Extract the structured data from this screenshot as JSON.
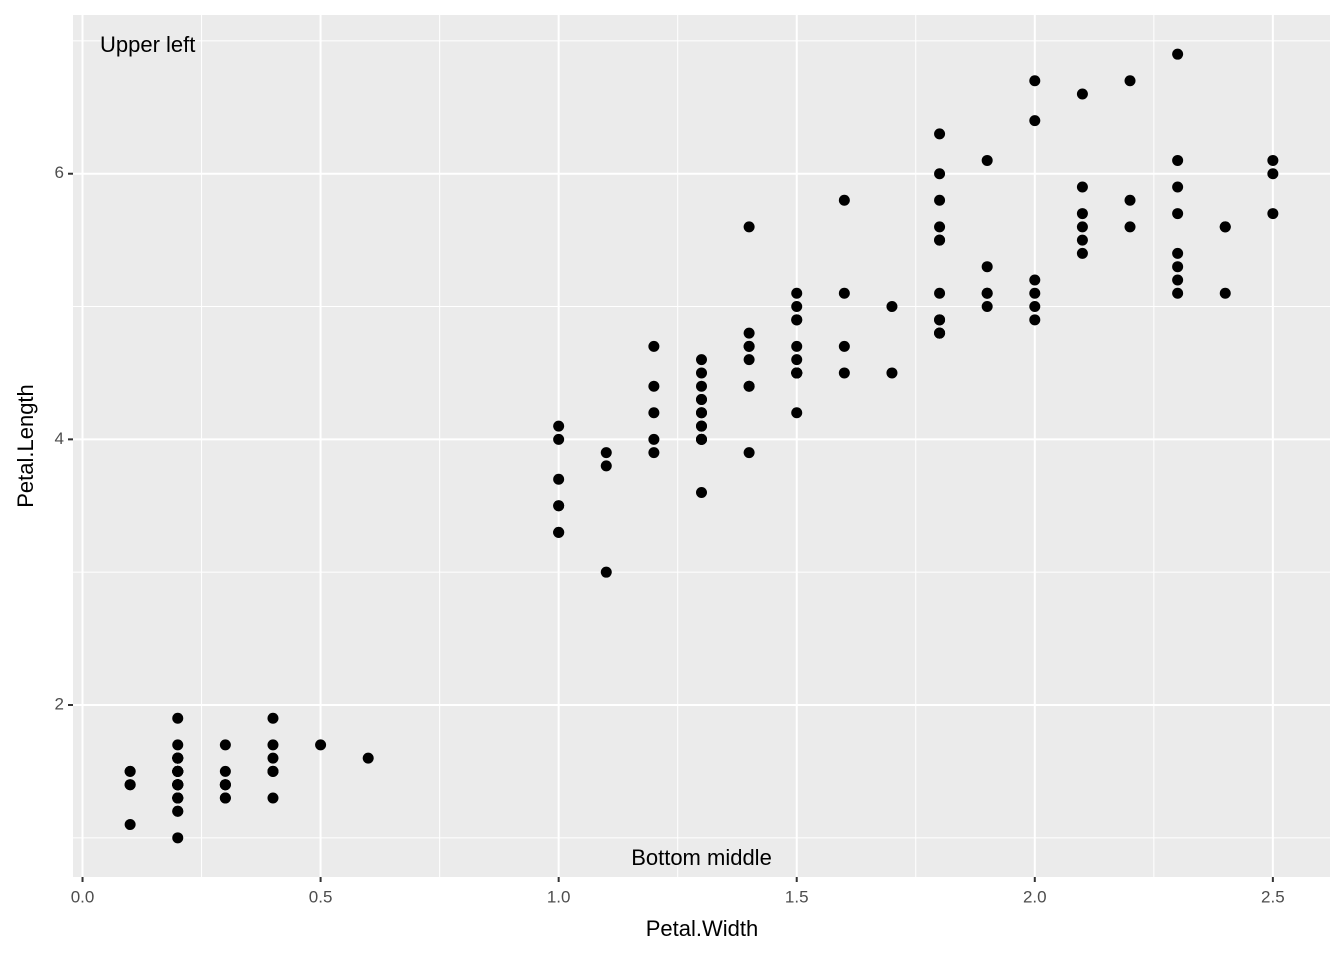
{
  "chart_data": {
    "type": "scatter",
    "x_label": "Petal.Width",
    "y_label": "Petal.Length",
    "annotations": [
      {
        "text": "Upper left",
        "position": "top-left"
      },
      {
        "text": "Bottom middle",
        "position": "bottom-center"
      }
    ],
    "color": "#000000",
    "grid": true,
    "xlim": [
      -0.02,
      2.62
    ],
    "ylim": [
      0.705,
      7.195
    ],
    "xticks": [
      {
        "value": 0,
        "label": "0.0"
      },
      0.5,
      {
        "value": 1,
        "label": "1.0"
      },
      1.5,
      {
        "value": 2,
        "label": "2.0"
      },
      2.5
    ],
    "yticks": [
      2,
      4,
      6
    ],
    "x": [
      0.2,
      0.2,
      0.2,
      0.2,
      0.2,
      0.4,
      0.3,
      0.2,
      0.2,
      0.1,
      0.2,
      0.2,
      0.1,
      0.1,
      0.2,
      0.4,
      0.4,
      0.3,
      0.3,
      0.3,
      0.2,
      0.4,
      0.2,
      0.5,
      0.2,
      0.2,
      0.4,
      0.2,
      0.2,
      0.2,
      0.2,
      0.4,
      0.1,
      0.2,
      0.2,
      0.2,
      0.2,
      0.1,
      0.2,
      0.2,
      0.3,
      0.3,
      0.2,
      0.6,
      0.4,
      0.3,
      0.2,
      0.2,
      0.2,
      0.2,
      1.4,
      1.5,
      1.5,
      1.3,
      1.5,
      1.3,
      1.6,
      1.0,
      1.3,
      1.4,
      1.0,
      1.5,
      1.0,
      1.4,
      1.3,
      1.4,
      1.5,
      1.0,
      1.5,
      1.1,
      1.8,
      1.3,
      1.5,
      1.2,
      1.3,
      1.4,
      1.4,
      1.7,
      1.5,
      1.0,
      1.1,
      1.0,
      1.2,
      1.6,
      1.5,
      1.6,
      1.5,
      1.3,
      1.3,
      1.3,
      1.2,
      1.4,
      1.2,
      1.0,
      1.3,
      1.2,
      1.3,
      1.3,
      1.1,
      1.3,
      2.5,
      1.9,
      2.1,
      1.8,
      2.2,
      2.1,
      1.7,
      1.8,
      1.8,
      2.5,
      2.0,
      1.9,
      2.1,
      2.0,
      2.4,
      2.3,
      1.8,
      2.2,
      2.3,
      1.5,
      2.3,
      2.0,
      2.0,
      1.8,
      2.1,
      1.8,
      1.8,
      1.8,
      2.1,
      1.6,
      1.9,
      2.0,
      2.2,
      1.5,
      1.4,
      2.3,
      2.4,
      1.8,
      1.8,
      2.1,
      2.4,
      2.3,
      1.9,
      2.3,
      2.5,
      2.3,
      1.9,
      2.0,
      2.3,
      1.8
    ],
    "values": [
      1.4,
      1.4,
      1.3,
      1.5,
      1.4,
      1.7,
      1.4,
      1.5,
      1.4,
      1.5,
      1.5,
      1.6,
      1.4,
      1.1,
      1.2,
      1.5,
      1.3,
      1.4,
      1.7,
      1.5,
      1.7,
      1.5,
      1.0,
      1.7,
      1.9,
      1.6,
      1.6,
      1.5,
      1.4,
      1.6,
      1.6,
      1.5,
      1.5,
      1.4,
      1.5,
      1.2,
      1.3,
      1.4,
      1.3,
      1.5,
      1.3,
      1.3,
      1.3,
      1.6,
      1.9,
      1.4,
      1.6,
      1.4,
      1.5,
      1.4,
      4.7,
      4.5,
      4.9,
      4.0,
      4.6,
      4.5,
      4.7,
      3.3,
      4.6,
      3.9,
      3.5,
      4.2,
      4.0,
      4.7,
      3.6,
      4.4,
      4.5,
      4.1,
      4.5,
      3.9,
      4.8,
      4.0,
      4.9,
      4.7,
      4.3,
      4.4,
      4.8,
      5.0,
      4.5,
      3.5,
      3.8,
      3.7,
      3.9,
      5.1,
      4.5,
      4.5,
      4.7,
      4.4,
      4.1,
      4.0,
      4.4,
      4.6,
      4.0,
      3.3,
      4.2,
      4.2,
      4.2,
      4.3,
      3.0,
      4.1,
      6.0,
      5.1,
      5.9,
      5.6,
      5.8,
      6.6,
      4.5,
      6.3,
      5.8,
      6.1,
      5.1,
      5.3,
      5.5,
      5.0,
      5.1,
      5.3,
      5.5,
      6.7,
      6.9,
      5.0,
      5.7,
      4.9,
      6.7,
      4.9,
      5.7,
      6.0,
      4.8,
      4.9,
      5.6,
      5.8,
      6.1,
      6.4,
      5.6,
      5.1,
      5.6,
      6.1,
      5.6,
      5.5,
      4.8,
      5.4,
      5.6,
      5.1,
      5.1,
      5.9,
      5.7,
      5.2,
      5.0,
      5.2,
      5.4,
      5.1
    ]
  }
}
